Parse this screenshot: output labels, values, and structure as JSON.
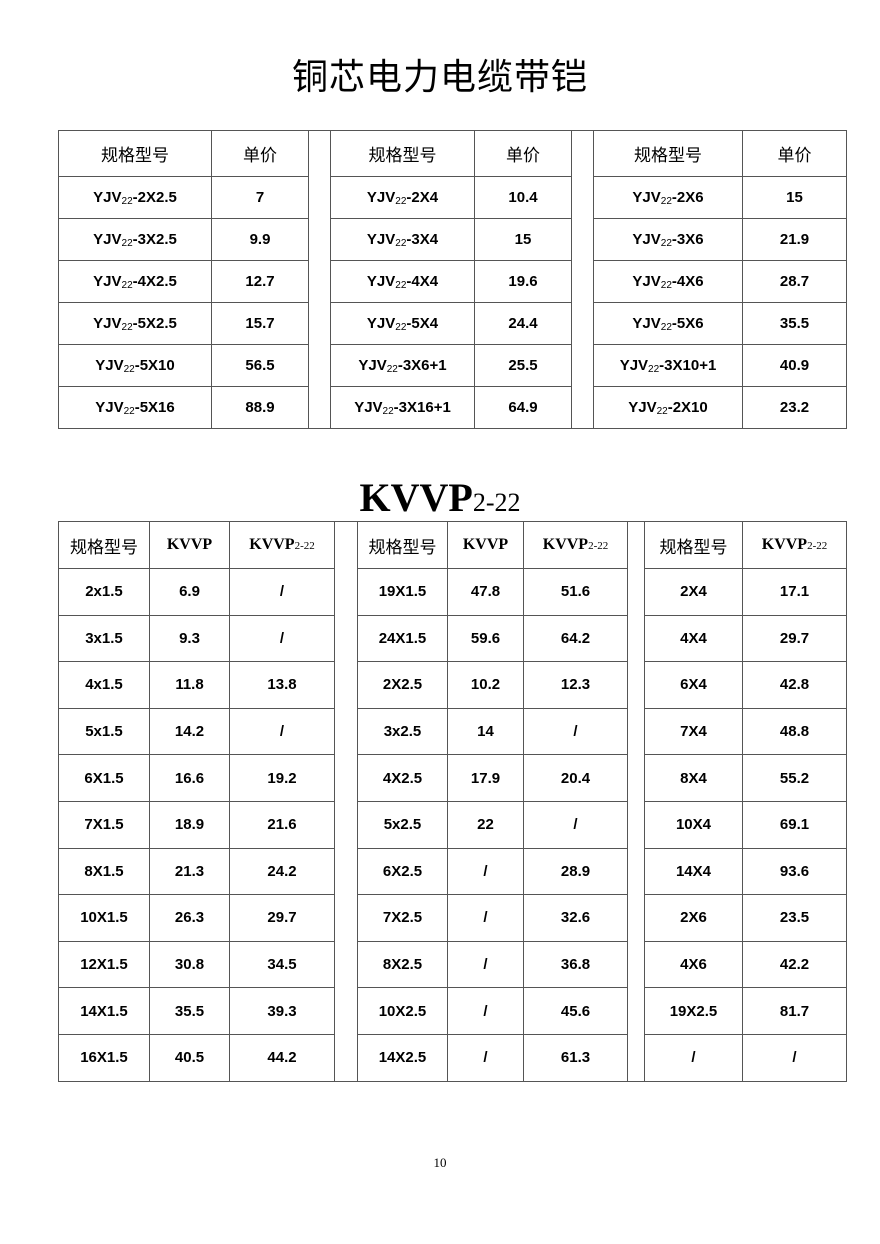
{
  "title": "铜芯电力电缆带铠",
  "table1": {
    "headers": [
      "规格型号",
      "单价"
    ],
    "model_prefix": "YJV",
    "model_sub": "22",
    "rows": [
      [
        [
          "-2X2.5",
          "7"
        ],
        [
          "-2X4",
          "10.4"
        ],
        [
          "-2X6",
          "15"
        ]
      ],
      [
        [
          "-3X2.5",
          "9.9"
        ],
        [
          "-3X4",
          "15"
        ],
        [
          "-3X6",
          "21.9"
        ]
      ],
      [
        [
          "-4X2.5",
          "12.7"
        ],
        [
          "-4X4",
          "19.6"
        ],
        [
          "-4X6",
          "28.7"
        ]
      ],
      [
        [
          "-5X2.5",
          "15.7"
        ],
        [
          "-5X4",
          "24.4"
        ],
        [
          "-5X6",
          "35.5"
        ]
      ],
      [
        [
          "-5X10",
          "56.5"
        ],
        [
          "-3X6+1",
          "25.5"
        ],
        [
          "-3X10+1",
          "40.9"
        ]
      ],
      [
        [
          "-5X16",
          "88.9"
        ],
        [
          "-3X16+1",
          "64.9"
        ],
        [
          "-2X10",
          "23.2"
        ]
      ]
    ]
  },
  "title2": {
    "main": "KVVP",
    "sub": "2-22"
  },
  "table2": {
    "header_spec": "规格型号",
    "header_kvvp": "KVVP",
    "header_kvvp22_main": "KVVP",
    "header_kvvp22_sub": "2-22",
    "rows": [
      [
        [
          "2x1.5",
          "6.9",
          "/"
        ],
        [
          "19X1.5",
          "47.8",
          "51.6"
        ],
        [
          "2X4",
          "17.1"
        ]
      ],
      [
        [
          "3x1.5",
          "9.3",
          "/"
        ],
        [
          "24X1.5",
          "59.6",
          "64.2"
        ],
        [
          "4X4",
          "29.7"
        ]
      ],
      [
        [
          "4x1.5",
          "11.8",
          "13.8"
        ],
        [
          "2X2.5",
          "10.2",
          "12.3"
        ],
        [
          "6X4",
          "42.8"
        ]
      ],
      [
        [
          "5x1.5",
          "14.2",
          "/"
        ],
        [
          "3x2.5",
          "14",
          "/"
        ],
        [
          "7X4",
          "48.8"
        ]
      ],
      [
        [
          "6X1.5",
          "16.6",
          "19.2"
        ],
        [
          "4X2.5",
          "17.9",
          "20.4"
        ],
        [
          "8X4",
          "55.2"
        ]
      ],
      [
        [
          "7X1.5",
          "18.9",
          "21.6"
        ],
        [
          "5x2.5",
          "22",
          "/"
        ],
        [
          "10X4",
          "69.1"
        ]
      ],
      [
        [
          "8X1.5",
          "21.3",
          "24.2"
        ],
        [
          "6X2.5",
          "/",
          "28.9"
        ],
        [
          "14X4",
          "93.6"
        ]
      ],
      [
        [
          "10X1.5",
          "26.3",
          "29.7"
        ],
        [
          "7X2.5",
          "/",
          "32.6"
        ],
        [
          "2X6",
          "23.5"
        ]
      ],
      [
        [
          "12X1.5",
          "30.8",
          "34.5"
        ],
        [
          "8X2.5",
          "/",
          "36.8"
        ],
        [
          "4X6",
          "42.2"
        ]
      ],
      [
        [
          "14X1.5",
          "35.5",
          "39.3"
        ],
        [
          "10X2.5",
          "/",
          "45.6"
        ],
        [
          "19X2.5",
          "81.7"
        ]
      ],
      [
        [
          "16X1.5",
          "40.5",
          "44.2"
        ],
        [
          "14X2.5",
          "/",
          "61.3"
        ],
        [
          "/",
          "/"
        ]
      ]
    ]
  },
  "page_number": "10"
}
